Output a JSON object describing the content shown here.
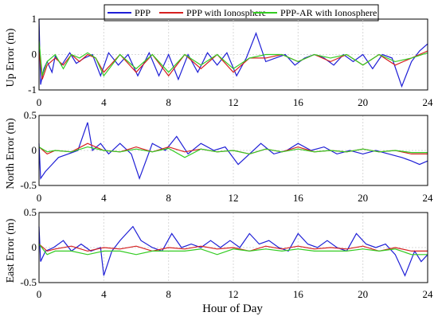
{
  "chart_data": {
    "type": "line",
    "legend": {
      "placement": "top-center",
      "entries": [
        {
          "name": "PPP",
          "color": "#1f1fd6"
        },
        {
          "name": "PPP with Ionosphere",
          "color": "#d62020"
        },
        {
          "name": "PPP-AR with Ionosphere",
          "color": "#33cc22"
        }
      ]
    },
    "xlabel": "Hour of Day",
    "xlim": [
      0,
      24
    ],
    "xticks": [
      0,
      4,
      8,
      12,
      16,
      20,
      24
    ],
    "grid": true,
    "panels": [
      {
        "ylabel": "Up Error (m)",
        "ylim": [
          -1,
          1
        ],
        "yticks": [
          -1,
          0,
          1
        ],
        "series": [
          {
            "name": "PPP",
            "x": [
              0.0,
              0.1,
              0.3,
              0.5,
              0.8,
              1.0,
              1.4,
              1.9,
              2.3,
              2.8,
              3.3,
              3.8,
              4.3,
              4.9,
              5.5,
              6.1,
              6.8,
              7.4,
              8.0,
              8.6,
              9.2,
              9.8,
              10.4,
              11.0,
              11.6,
              12.2,
              12.8,
              13.4,
              14.0,
              14.6,
              15.2,
              15.8,
              16.4,
              17.0,
              17.6,
              18.2,
              18.8,
              19.4,
              20.0,
              20.6,
              21.2,
              21.8,
              22.4,
              23.0,
              23.5,
              24.0
            ],
            "y": [
              1.0,
              -0.85,
              -0.4,
              -0.2,
              -0.5,
              -0.05,
              -0.3,
              0.05,
              -0.25,
              -0.1,
              0.0,
              -0.6,
              0.05,
              -0.3,
              0.0,
              -0.6,
              0.05,
              -0.6,
              0.0,
              -0.7,
              0.0,
              -0.5,
              0.05,
              -0.3,
              0.05,
              -0.6,
              -0.1,
              0.6,
              -0.2,
              -0.1,
              0.0,
              -0.3,
              -0.1,
              0.0,
              -0.1,
              -0.3,
              0.0,
              -0.2,
              0.0,
              -0.4,
              0.0,
              -0.1,
              -0.9,
              -0.2,
              0.1,
              0.3
            ]
          },
          {
            "name": "PPP with Ionosphere",
            "x": [
              0.0,
              0.2,
              0.5,
              1.0,
              1.5,
              2.0,
              2.5,
              3.0,
              3.5,
              4.0,
              5.0,
              6.0,
              7.0,
              8.0,
              9.0,
              10.0,
              11.0,
              12.0,
              13.0,
              14.0,
              15.0,
              16.0,
              17.0,
              18.0,
              19.0,
              20.0,
              21.0,
              22.0,
              23.0,
              24.0
            ],
            "y": [
              0.1,
              -0.7,
              -0.3,
              -0.1,
              -0.3,
              0.0,
              -0.2,
              0.0,
              -0.1,
              -0.5,
              0.0,
              -0.5,
              0.0,
              -0.6,
              0.0,
              -0.4,
              0.0,
              -0.5,
              -0.1,
              -0.1,
              0.0,
              -0.2,
              0.0,
              -0.2,
              0.0,
              -0.3,
              0.0,
              -0.3,
              -0.1,
              0.1
            ]
          },
          {
            "name": "PPP-AR with Ionosphere",
            "x": [
              0.0,
              0.2,
              0.5,
              1.0,
              1.5,
              2.0,
              2.5,
              3.0,
              3.5,
              4.0,
              5.0,
              6.0,
              7.0,
              8.0,
              9.0,
              10.0,
              11.0,
              12.0,
              13.0,
              14.0,
              15.0,
              16.0,
              17.0,
              18.0,
              19.0,
              20.0,
              21.0,
              22.0,
              23.0,
              24.0
            ],
            "y": [
              0.4,
              -0.6,
              -0.2,
              0.0,
              -0.4,
              0.0,
              -0.1,
              0.05,
              -0.1,
              -0.6,
              0.0,
              -0.4,
              0.0,
              -0.5,
              0.0,
              -0.3,
              0.0,
              -0.4,
              -0.1,
              0.0,
              0.0,
              -0.2,
              0.0,
              -0.1,
              0.0,
              -0.3,
              0.0,
              -0.2,
              -0.1,
              0.05
            ]
          }
        ]
      },
      {
        "ylabel": "North Error (m)",
        "ylim": [
          -0.5,
          0.5
        ],
        "yticks": [
          -0.5,
          0,
          0.5
        ],
        "series": [
          {
            "name": "PPP",
            "x": [
              0.0,
              0.1,
              0.4,
              0.8,
              1.2,
              1.8,
              2.4,
              3.0,
              3.3,
              3.8,
              4.3,
              5.0,
              5.7,
              6.2,
              7.0,
              7.8,
              8.5,
              9.2,
              10.0,
              10.8,
              11.5,
              12.3,
              13.0,
              13.7,
              14.5,
              15.3,
              16.0,
              16.8,
              17.6,
              18.4,
              19.2,
              20.0,
              20.8,
              21.6,
              22.4,
              23.0,
              23.5,
              24.0
            ],
            "y": [
              0.1,
              -0.4,
              -0.3,
              -0.2,
              -0.1,
              -0.05,
              0.0,
              0.4,
              0.0,
              0.1,
              -0.05,
              0.1,
              -0.05,
              -0.4,
              0.1,
              0.0,
              0.2,
              -0.05,
              0.1,
              0.0,
              0.05,
              -0.2,
              -0.05,
              0.1,
              -0.05,
              0.0,
              0.1,
              0.0,
              0.05,
              -0.05,
              0.0,
              -0.05,
              0.0,
              -0.05,
              -0.1,
              -0.15,
              -0.2,
              -0.15
            ]
          },
          {
            "name": "PPP with Ionosphere",
            "x": [
              0.0,
              0.5,
              1.0,
              2.0,
              3.0,
              4.0,
              5.0,
              6.0,
              7.0,
              8.0,
              9.0,
              10.0,
              11.0,
              12.0,
              13.0,
              14.0,
              15.0,
              16.0,
              17.0,
              18.0,
              19.0,
              20.0,
              21.0,
              22.0,
              23.0,
              24.0
            ],
            "y": [
              0.05,
              -0.05,
              0.0,
              -0.02,
              0.1,
              0.0,
              -0.02,
              0.05,
              -0.02,
              0.05,
              -0.02,
              0.02,
              -0.02,
              0.0,
              -0.05,
              0.02,
              -0.02,
              0.05,
              -0.02,
              0.0,
              -0.02,
              0.02,
              -0.02,
              0.0,
              -0.05,
              -0.05
            ]
          },
          {
            "name": "PPP-AR with Ionosphere",
            "x": [
              0.0,
              0.5,
              1.0,
              2.0,
              3.0,
              4.0,
              5.0,
              6.0,
              7.0,
              8.0,
              9.0,
              10.0,
              11.0,
              12.0,
              13.0,
              14.0,
              15.0,
              16.0,
              17.0,
              18.0,
              19.0,
              20.0,
              21.0,
              22.0,
              23.0,
              24.0
            ],
            "y": [
              0.05,
              -0.02,
              0.0,
              -0.02,
              0.05,
              0.0,
              -0.02,
              0.02,
              -0.02,
              0.03,
              -0.1,
              0.02,
              -0.02,
              0.0,
              -0.05,
              0.02,
              -0.02,
              0.02,
              -0.02,
              0.0,
              -0.02,
              0.02,
              -0.02,
              0.0,
              -0.03,
              -0.03
            ]
          }
        ]
      },
      {
        "ylabel": "East Error (m)",
        "ylim": [
          -0.5,
          0.5
        ],
        "yticks": [
          -0.5,
          0,
          0.5
        ],
        "series": [
          {
            "name": "PPP",
            "x": [
              0.0,
              0.1,
              0.4,
              0.9,
              1.5,
              2.0,
              2.6,
              3.2,
              3.8,
              4.0,
              4.5,
              5.0,
              5.4,
              5.8,
              6.3,
              7.0,
              7.6,
              8.2,
              8.8,
              9.4,
              10.0,
              10.6,
              11.2,
              11.8,
              12.4,
              13.0,
              13.6,
              14.2,
              14.8,
              15.4,
              16.0,
              16.6,
              17.2,
              17.8,
              18.4,
              19.0,
              19.6,
              20.2,
              20.8,
              21.4,
              22.0,
              22.6,
              23.2,
              23.6,
              24.0
            ],
            "y": [
              0.3,
              -0.2,
              -0.05,
              0.0,
              0.1,
              -0.05,
              0.05,
              -0.05,
              0.0,
              -0.4,
              -0.05,
              0.1,
              0.2,
              0.3,
              0.1,
              0.0,
              -0.05,
              0.2,
              0.0,
              0.05,
              0.0,
              0.1,
              0.0,
              0.1,
              0.0,
              0.2,
              0.05,
              0.1,
              0.0,
              -0.05,
              0.2,
              0.05,
              0.0,
              0.1,
              0.0,
              -0.05,
              0.2,
              0.05,
              0.0,
              0.05,
              -0.1,
              -0.4,
              -0.05,
              -0.2,
              -0.1
            ]
          },
          {
            "name": "PPP with Ionosphere",
            "x": [
              0.0,
              0.5,
              1.0,
              2.0,
              3.0,
              4.0,
              5.0,
              6.0,
              7.0,
              8.0,
              9.0,
              10.0,
              11.0,
              12.0,
              13.0,
              14.0,
              15.0,
              16.0,
              17.0,
              18.0,
              19.0,
              20.0,
              21.0,
              22.0,
              23.0,
              24.0
            ],
            "y": [
              0.05,
              -0.05,
              -0.02,
              0.02,
              -0.05,
              0.0,
              -0.02,
              0.02,
              -0.05,
              0.0,
              -0.02,
              0.02,
              -0.02,
              0.0,
              -0.05,
              0.02,
              -0.02,
              0.02,
              -0.02,
              0.0,
              -0.02,
              0.02,
              -0.05,
              0.0,
              -0.05,
              -0.05
            ]
          },
          {
            "name": "PPP-AR with Ionosphere",
            "x": [
              0.0,
              0.5,
              1.0,
              2.0,
              3.0,
              4.0,
              5.0,
              6.0,
              7.0,
              8.0,
              9.0,
              10.0,
              11.0,
              12.0,
              13.0,
              14.0,
              15.0,
              16.0,
              17.0,
              18.0,
              19.0,
              20.0,
              21.0,
              22.0,
              23.0,
              24.0
            ],
            "y": [
              0.05,
              -0.1,
              -0.05,
              -0.05,
              -0.1,
              -0.05,
              -0.05,
              -0.1,
              -0.05,
              -0.05,
              -0.05,
              -0.02,
              -0.1,
              -0.02,
              -0.05,
              -0.02,
              -0.05,
              -0.02,
              -0.05,
              -0.05,
              -0.05,
              -0.02,
              -0.05,
              -0.02,
              -0.1,
              -0.1
            ]
          }
        ]
      }
    ]
  }
}
